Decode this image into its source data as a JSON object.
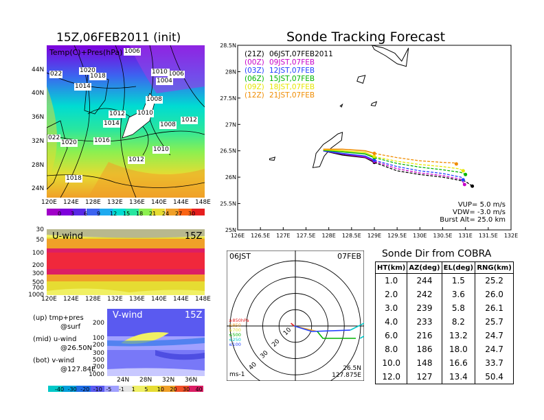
{
  "left_panel": {
    "title": "15Z,06FEB2011 (init)",
    "map_label": "Temp(C)+Pres(hPa)",
    "lat_ticks": [
      "44N",
      "40N",
      "36N",
      "32N",
      "28N",
      "24N"
    ],
    "lon_ticks": [
      "120E",
      "124E",
      "128E",
      "132E",
      "136E",
      "140E",
      "144E",
      "148E"
    ],
    "pressure_labels": [
      "1006",
      "1020",
      "1018",
      "1014",
      "1012",
      "1010",
      "1004",
      "1008",
      "1006",
      "1012",
      "1014",
      "1016",
      "1012",
      "1010",
      "1008",
      "1012",
      "1020",
      "1018",
      "022",
      "022",
      "1010"
    ],
    "temp_colorbar": [
      "0",
      "3",
      "6",
      "9",
      "12",
      "15",
      "18",
      "21",
      "24",
      "27",
      "30"
    ],
    "uwind_title": "U-wind",
    "uwind_time": "15Z",
    "uwind_levels": [
      "30",
      "50",
      "100",
      "200",
      "300",
      "500",
      "700",
      "1000"
    ],
    "vwind_title": "V-wind",
    "vwind_time": "15Z",
    "vwind_levels": [
      "200",
      "100",
      "200",
      "300",
      "500",
      "700",
      "1000"
    ],
    "vwind_lat_ticks": [
      "24N",
      "28N",
      "32N",
      "36N"
    ],
    "notes": [
      "(up) tmp+pres",
      "@surf",
      "(mid) u-wind",
      "@26.50N",
      "(bot) v-wind",
      "@127.84E"
    ],
    "wind_colorbar": [
      "-40",
      "-30",
      "-20",
      "-10",
      "-5",
      "-1",
      "1",
      "5",
      "10",
      "20",
      "30",
      "40"
    ]
  },
  "colors": {
    "temp_scale": [
      "#a000c8",
      "#7e00dc",
      "#5a28e6",
      "#3c64f0",
      "#1eaaf0",
      "#00dcd2",
      "#28e6a0",
      "#8cf050",
      "#e6dc32",
      "#f0a028",
      "#fa6414",
      "#e61e1e"
    ],
    "wind_scale": [
      "#00c8c8",
      "#00a0dc",
      "#1e6ee6",
      "#5a5af0",
      "#a0a0ff",
      "#e6e6e6",
      "#f0f064",
      "#e6dc32",
      "#f0a028",
      "#f05028",
      "#dc1e64"
    ],
    "launch_colors": [
      "#000000",
      "#c800c8",
      "#2040ff",
      "#00b400",
      "#e6e600",
      "#f08c00"
    ]
  },
  "chart_data": [
    {
      "type": "line",
      "title": "Sonde Tracking Forecast",
      "xlabel": "",
      "ylabel": "",
      "x_ticks": [
        "126E",
        "126.5E",
        "127E",
        "127.5E",
        "128E",
        "128.5E",
        "129E",
        "129.5E",
        "130E",
        "130.5E",
        "131E",
        "131.5E",
        "132E"
      ],
      "y_ticks": [
        "25N",
        "25.5N",
        "26N",
        "26.5N",
        "27N",
        "27.5N",
        "28N",
        "28.5N"
      ],
      "xlim": [
        126,
        132
      ],
      "ylim": [
        25,
        28.5
      ],
      "legend": [
        {
          "tag": "(21Z)",
          "time": "06JST,07FEB2011"
        },
        {
          "tag": "(00Z)",
          "time": "09JST,07FEB"
        },
        {
          "tag": "(03Z)",
          "time": "12JST,07FEB"
        },
        {
          "tag": "(06Z)",
          "time": "15JST,07FEB"
        },
        {
          "tag": "(09Z)",
          "time": "18JST,07FEB"
        },
        {
          "tag": "(12Z)",
          "time": "21JST,07FEB"
        }
      ],
      "info": [
        "VUP= 5.0 m/s",
        "VDW= -3.0 m/s",
        "Burst Alt= 25.0 km"
      ],
      "series": [
        {
          "name": "(21Z) 06JST,07FEB2011",
          "x": [
            127.88,
            128.3,
            128.8,
            129.0,
            129.5,
            130.0,
            130.5,
            131.0,
            131.15
          ],
          "y": [
            26.5,
            26.42,
            26.37,
            26.28,
            26.12,
            26.05,
            26.0,
            25.92,
            25.83
          ]
        },
        {
          "name": "(00Z) 09JST,07FEB",
          "x": [
            127.88,
            128.3,
            128.8,
            129.0,
            129.5,
            130.0,
            130.5,
            130.9,
            130.98
          ],
          "y": [
            26.5,
            26.44,
            26.38,
            26.3,
            26.16,
            26.08,
            26.03,
            25.96,
            25.86
          ]
        },
        {
          "name": "(03Z) 12JST,07FEB",
          "x": [
            127.88,
            128.3,
            128.8,
            129.0,
            129.5,
            130.0,
            130.5,
            130.9,
            130.95
          ],
          "y": [
            26.5,
            26.45,
            26.4,
            26.32,
            26.2,
            26.12,
            26.07,
            26.0,
            25.95
          ]
        },
        {
          "name": "(06Z) 15JST,07FEB",
          "x": [
            127.88,
            128.3,
            128.8,
            129.0,
            129.5,
            130.0,
            130.5,
            130.9,
            131.0
          ],
          "y": [
            26.51,
            26.48,
            26.44,
            26.37,
            26.26,
            26.19,
            26.14,
            26.09,
            26.05
          ]
        },
        {
          "name": "(09Z) 18JST,07FEB",
          "x": [
            127.88,
            128.3,
            128.8,
            129.0,
            129.5,
            130.0,
            130.5,
            130.85,
            130.95
          ],
          "y": [
            26.52,
            26.5,
            26.47,
            26.39,
            26.3,
            26.24,
            26.2,
            26.16,
            26.12
          ]
        },
        {
          "name": "(12Z) 21JST,07FEB",
          "x": [
            127.88,
            128.3,
            128.8,
            129.0,
            129.5,
            130.0,
            130.5,
            130.75,
            130.8
          ],
          "y": [
            26.53,
            26.53,
            26.5,
            26.45,
            26.37,
            26.31,
            26.28,
            26.27,
            26.25
          ]
        }
      ]
    },
    {
      "type": "table",
      "title": "Sonde Dir from COBRA",
      "columns": [
        "HT(km)",
        "AZ(deg)",
        "EL(deg)",
        "RNG(km)"
      ],
      "rows": [
        [
          "1.0",
          "244",
          "1.5",
          "25.2"
        ],
        [
          "2.0",
          "242",
          "3.6",
          "26.0"
        ],
        [
          "3.0",
          "239",
          "5.8",
          "26.1"
        ],
        [
          "4.0",
          "233",
          "8.2",
          "25.7"
        ],
        [
          "6.0",
          "216",
          "13.2",
          "24.7"
        ],
        [
          "8.0",
          "186",
          "18.0",
          "24.7"
        ],
        [
          "10.0",
          "148",
          "16.6",
          "33.7"
        ],
        [
          "12.0",
          "127",
          "13.4",
          "50.4"
        ]
      ]
    }
  ],
  "polar": {
    "time_left": "06JST",
    "time_right": "07FEB",
    "ring_labels": [
      "10",
      "20",
      "30",
      "40"
    ],
    "legend": [
      "≥850hPa",
      "≤850",
      "≤700",
      "≤500",
      "≤250",
      "≤100"
    ],
    "unit": "ms-1",
    "lat": "26.5N",
    "lon": "127.875E"
  }
}
